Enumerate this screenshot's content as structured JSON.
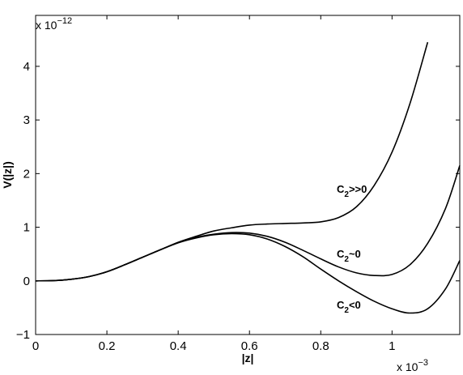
{
  "chart_data": {
    "type": "line",
    "xlabel": "|z|",
    "ylabel": "V(|z|)",
    "x_multiplier_label": {
      "base": "x 10",
      "exponent": "−3"
    },
    "y_multiplier_label": {
      "base": "x 10",
      "exponent": "−12"
    },
    "xlim": [
      0,
      1.19
    ],
    "ylim": [
      -1,
      4.95
    ],
    "xticks": [
      0,
      0.2,
      0.4,
      0.6,
      0.8,
      1
    ],
    "xtick_labels": [
      "0",
      "0.2",
      "0.4",
      "0.6",
      "0.8",
      "1"
    ],
    "yticks": [
      -1,
      0,
      1,
      2,
      3,
      4
    ],
    "ytick_labels": [
      "−1",
      "0",
      "1",
      "2",
      "3",
      "4"
    ],
    "grid": false,
    "series": [
      {
        "label_main": "C",
        "label_sub": "2",
        "label_rest": ">>0",
        "x": [
          0,
          0.05,
          0.1,
          0.15,
          0.2,
          0.25,
          0.3,
          0.35,
          0.4,
          0.45,
          0.5,
          0.55,
          0.6,
          0.65,
          0.7,
          0.75,
          0.8,
          0.85,
          0.9,
          0.95,
          1.0,
          1.05,
          1.1
        ],
        "y": [
          0,
          0.005,
          0.03,
          0.08,
          0.17,
          0.3,
          0.44,
          0.58,
          0.72,
          0.83,
          0.93,
          0.99,
          1.04,
          1.06,
          1.07,
          1.08,
          1.1,
          1.18,
          1.38,
          1.78,
          2.4,
          3.3,
          4.45
        ]
      },
      {
        "label_main": "C",
        "label_sub": "2",
        "label_rest": "~0",
        "x": [
          0,
          0.05,
          0.1,
          0.15,
          0.2,
          0.25,
          0.3,
          0.35,
          0.4,
          0.45,
          0.5,
          0.55,
          0.6,
          0.65,
          0.7,
          0.75,
          0.8,
          0.85,
          0.9,
          0.95,
          1.0,
          1.05,
          1.1,
          1.15,
          1.19
        ],
        "y": [
          0,
          0.005,
          0.03,
          0.08,
          0.17,
          0.3,
          0.44,
          0.58,
          0.71,
          0.81,
          0.87,
          0.9,
          0.89,
          0.83,
          0.72,
          0.57,
          0.41,
          0.26,
          0.15,
          0.1,
          0.12,
          0.3,
          0.7,
          1.35,
          2.15
        ]
      },
      {
        "label_main": "C",
        "label_sub": "2",
        "label_rest": "<0",
        "x": [
          0,
          0.05,
          0.1,
          0.15,
          0.2,
          0.25,
          0.3,
          0.35,
          0.4,
          0.45,
          0.5,
          0.55,
          0.6,
          0.65,
          0.7,
          0.75,
          0.8,
          0.85,
          0.9,
          0.95,
          1.0,
          1.05,
          1.1,
          1.15,
          1.19
        ],
        "y": [
          0,
          0.005,
          0.03,
          0.08,
          0.17,
          0.3,
          0.44,
          0.58,
          0.71,
          0.8,
          0.86,
          0.88,
          0.86,
          0.78,
          0.64,
          0.45,
          0.22,
          0.0,
          -0.2,
          -0.38,
          -0.52,
          -0.6,
          -0.52,
          -0.15,
          0.38
        ]
      }
    ]
  }
}
